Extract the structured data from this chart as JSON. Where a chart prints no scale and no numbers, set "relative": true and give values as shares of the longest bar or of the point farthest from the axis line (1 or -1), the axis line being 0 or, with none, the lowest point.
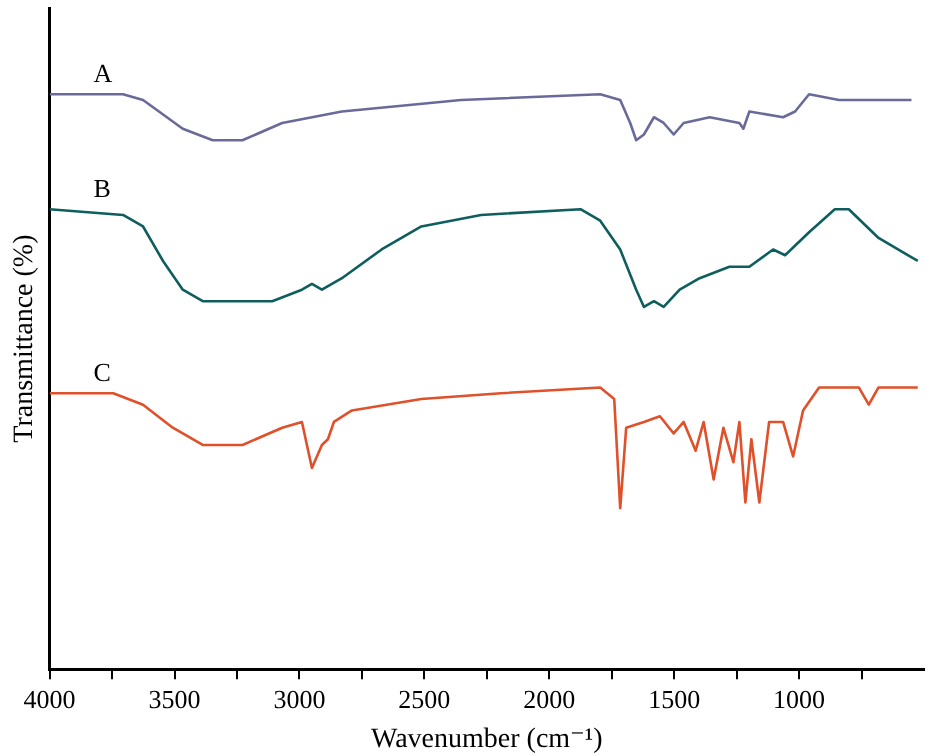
{
  "chart_data": {
    "type": "line",
    "xlabel": "Wavenumber (cm⁻¹)",
    "ylabel": "Transmittance (%)",
    "relative": true,
    "legend": false,
    "grid": false,
    "marker": "none",
    "line_style": "solid",
    "xlim": [
      4000,
      500
    ],
    "xticks": [
      4000,
      {
        "value": 3750,
        "label": null
      },
      3500,
      {
        "value": 3250,
        "label": null
      },
      3000,
      {
        "value": 2750,
        "label": null
      },
      2500,
      {
        "value": 2250,
        "label": null
      },
      2000,
      {
        "value": 1750,
        "label": null
      },
      1500,
      {
        "value": 1250,
        "label": null
      },
      1000,
      {
        "value": 750,
        "label": null
      }
    ],
    "series": [
      {
        "name": "A",
        "color": "#6a6a9a",
        "x": [
          4000,
          3706,
          3626,
          3467,
          3347,
          3228,
          3069,
          2830,
          2353,
          1796,
          1716,
          1676,
          1652,
          1621,
          1581,
          1542,
          1502,
          1462,
          1358,
          1239,
          1223,
          1199,
          1064,
          1016,
          960,
          840,
          550
        ],
        "values": [
          1.0,
          1.0,
          0.99,
          0.94,
          0.92,
          0.92,
          0.95,
          0.97,
          0.99,
          1.0,
          0.99,
          0.95,
          0.92,
          0.93,
          0.96,
          0.95,
          0.93,
          0.95,
          0.96,
          0.95,
          0.94,
          0.97,
          0.96,
          0.97,
          1.0,
          0.99,
          0.99
        ]
      },
      {
        "name": "B",
        "color": "#0e5e5e",
        "x": [
          4000,
          3706,
          3626,
          3546,
          3467,
          3387,
          3268,
          3109,
          2990,
          2950,
          2910,
          2830,
          2671,
          2512,
          2273,
          1875,
          1796,
          1716,
          1652,
          1621,
          1581,
          1542,
          1478,
          1398,
          1279,
          1199,
          1104,
          1056,
          960,
          857,
          801,
          682,
          525
        ],
        "values": [
          0.8,
          0.79,
          0.77,
          0.71,
          0.66,
          0.64,
          0.64,
          0.64,
          0.66,
          0.67,
          0.66,
          0.68,
          0.73,
          0.77,
          0.79,
          0.8,
          0.78,
          0.73,
          0.66,
          0.63,
          0.64,
          0.63,
          0.66,
          0.68,
          0.7,
          0.7,
          0.73,
          0.72,
          0.76,
          0.8,
          0.8,
          0.75,
          0.71
        ]
      },
      {
        "name": "C",
        "color": "#e0502a",
        "x": [
          4000,
          3745,
          3626,
          3507,
          3387,
          3228,
          3069,
          2990,
          2950,
          2910,
          2886,
          2862,
          2790,
          2512,
          2194,
          1796,
          1740,
          1716,
          1692,
          1621,
          1557,
          1502,
          1462,
          1414,
          1382,
          1342,
          1303,
          1263,
          1239,
          1215,
          1191,
          1159,
          1120,
          1064,
          1024,
          984,
          920,
          761,
          721,
          682,
          525
        ],
        "values": [
          0.48,
          0.48,
          0.46,
          0.42,
          0.39,
          0.39,
          0.42,
          0.43,
          0.35,
          0.39,
          0.4,
          0.43,
          0.45,
          0.47,
          0.48,
          0.49,
          0.47,
          0.28,
          0.42,
          0.43,
          0.44,
          0.41,
          0.43,
          0.38,
          0.43,
          0.33,
          0.42,
          0.36,
          0.43,
          0.29,
          0.4,
          0.29,
          0.43,
          0.43,
          0.37,
          0.45,
          0.49,
          0.49,
          0.46,
          0.49,
          0.49
        ]
      }
    ]
  }
}
